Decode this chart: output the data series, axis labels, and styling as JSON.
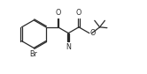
{
  "bg_color": "#ffffff",
  "line_color": "#2a2a2a",
  "lw": 0.9,
  "text_color": "#2a2a2a",
  "font_size": 5.8,
  "fig_width": 1.66,
  "fig_height": 0.84,
  "dpi": 100,
  "xlim": [
    0,
    10
  ],
  "ylim": [
    0,
    5
  ]
}
